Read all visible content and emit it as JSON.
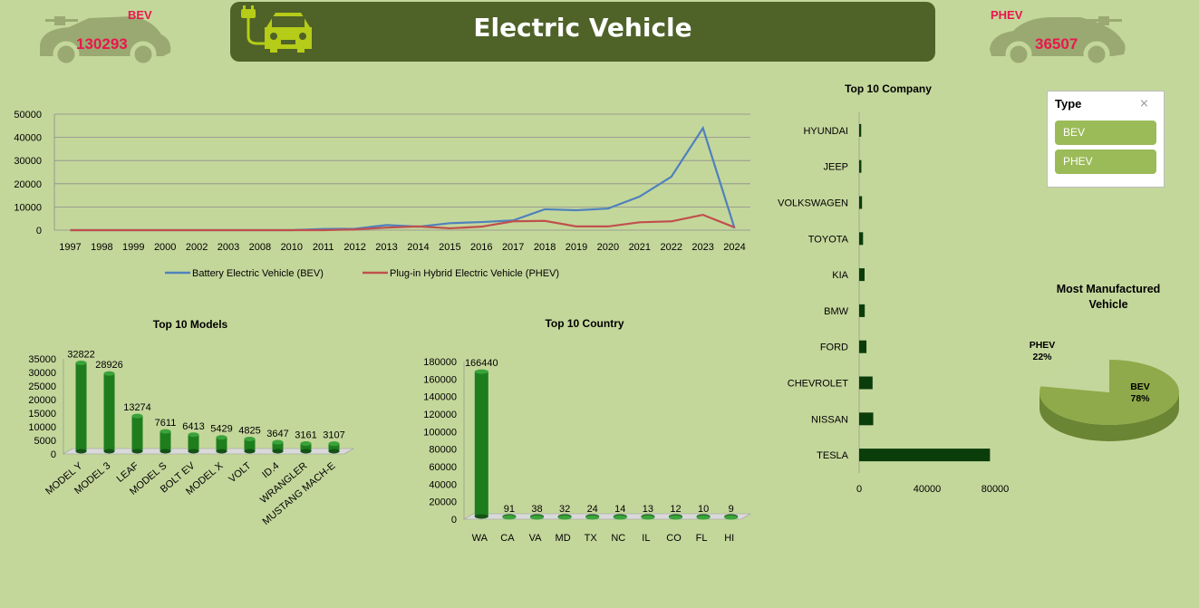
{
  "header": {
    "title": "Electric Vehicle"
  },
  "kpis": {
    "bev": {
      "label": "BEV",
      "value": "130293"
    },
    "phev": {
      "label": "PHEV",
      "value": "36507"
    }
  },
  "slicer": {
    "title": "Type",
    "items": [
      "BEV",
      "PHEV"
    ]
  },
  "colors": {
    "bev_line": "#4f81bd",
    "phev_line": "#c0504d",
    "bar_green": "#1e7e1e",
    "dark_green": "#0b3d0b",
    "pie_bev": "#8faa4a",
    "pie_phev": "#c3d69b",
    "banner": "#4f6228",
    "kpi_text": "#e8174f"
  },
  "chart_data": [
    {
      "type": "line",
      "title": "",
      "x": [
        "1997",
        "1998",
        "1999",
        "2000",
        "2002",
        "2003",
        "2008",
        "2010",
        "2011",
        "2012",
        "2013",
        "2014",
        "2015",
        "2016",
        "2017",
        "2018",
        "2019",
        "2020",
        "2021",
        "2022",
        "2023",
        "2024"
      ],
      "ylim": [
        0,
        50000
      ],
      "yticks": [
        0,
        10000,
        20000,
        30000,
        40000,
        50000
      ],
      "legend": "bottom",
      "grid": true,
      "series": [
        {
          "name": "Battery Electric Vehicle (BEV)",
          "values": [
            1,
            0,
            1,
            1,
            1,
            1,
            1,
            1,
            500,
            600,
            2200,
            1500,
            3000,
            3500,
            4200,
            9000,
            8600,
            9300,
            14500,
            23000,
            44000,
            800
          ]
        },
        {
          "name": "Plug-in Hybrid Electric Vehicle (PHEV)",
          "values": [
            0,
            0,
            0,
            0,
            0,
            0,
            0,
            0,
            0,
            300,
            1100,
            1600,
            800,
            1500,
            3800,
            4000,
            1600,
            1600,
            3400,
            3800,
            6600,
            1200
          ]
        }
      ]
    },
    {
      "type": "bar",
      "title": "Top 10 Models",
      "categories": [
        "MODEL Y",
        "MODEL 3",
        "LEAF",
        "MODEL S",
        "BOLT EV",
        "MODEL X",
        "VOLT",
        "ID.4",
        "WRANGLER",
        "MUSTANG MACH-E"
      ],
      "values": [
        32822,
        28926,
        13274,
        7611,
        6413,
        5429,
        4825,
        3647,
        3161,
        3107
      ],
      "ylim": [
        0,
        35000
      ],
      "yticks": [
        0,
        5000,
        10000,
        15000,
        20000,
        25000,
        30000,
        35000
      ]
    },
    {
      "type": "bar",
      "title": "Top 10 Country",
      "categories": [
        "WA",
        "CA",
        "VA",
        "MD",
        "TX",
        "NC",
        "IL",
        "CO",
        "FL",
        "HI"
      ],
      "values": [
        166440,
        91,
        38,
        32,
        24,
        14,
        13,
        12,
        10,
        9
      ],
      "ylim": [
        0,
        180000
      ],
      "yticks": [
        0,
        20000,
        40000,
        60000,
        80000,
        100000,
        120000,
        140000,
        160000,
        180000
      ]
    },
    {
      "type": "bar",
      "orientation": "horizontal",
      "title": "Top 10 Company",
      "categories": [
        "HYUNDAI",
        "JEEP",
        "VOLKSWAGEN",
        "TOYOTA",
        "KIA",
        "BMW",
        "FORD",
        "CHEVROLET",
        "NISSAN",
        "TESLA"
      ],
      "values": [
        1200,
        1300,
        1700,
        2300,
        3200,
        3300,
        4300,
        7900,
        8300,
        77000
      ],
      "xlim": [
        0,
        80000
      ],
      "xticks": [
        0,
        40000,
        80000
      ]
    },
    {
      "type": "pie",
      "title": "Most Manufactured Vehicle",
      "slices": [
        {
          "label": "BEV",
          "value": 78,
          "display": "78%"
        },
        {
          "label": "PHEV",
          "value": 22,
          "display": "22%"
        }
      ]
    }
  ]
}
